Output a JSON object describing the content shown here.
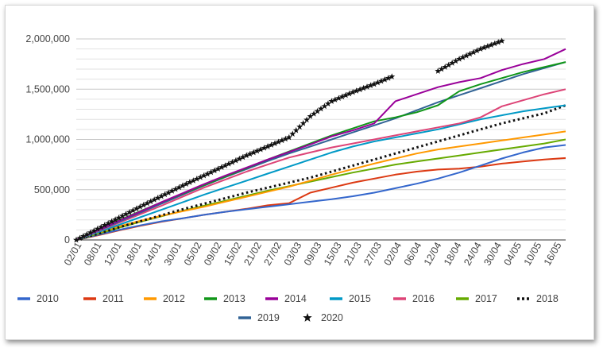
{
  "chart_data": {
    "type": "line",
    "title": "",
    "xlabel": "",
    "ylabel": "",
    "x_ticks": [
      "02/01",
      "08/01",
      "12/01",
      "18/01",
      "24/01",
      "30/01",
      "05/02",
      "09/02",
      "15/02",
      "21/02",
      "27/02",
      "03/03",
      "09/03",
      "15/03",
      "21/03",
      "27/03",
      "02/04",
      "06/04",
      "12/04",
      "18/04",
      "24/04",
      "30/04",
      "04/05",
      "10/05",
      "16/05"
    ],
    "y_ticks": [
      "0",
      "500,000",
      "1,000,000",
      "1,500,000",
      "2,000,000"
    ],
    "ylim": [
      0,
      2000000
    ],
    "grid": true,
    "legend_position": "bottom",
    "series": [
      {
        "name": "2010",
        "color": "#3366cc",
        "style": "solid",
        "values": [
          0,
          50000,
          100000,
          145000,
          185000,
          215000,
          250000,
          280000,
          305000,
          330000,
          355000,
          380000,
          405000,
          435000,
          470000,
          515000,
          560000,
          610000,
          670000,
          740000,
          810000,
          870000,
          920000,
          945000
        ]
      },
      {
        "name": "2011",
        "color": "#dc3912",
        "style": "solid",
        "values": [
          0,
          45000,
          95000,
          140000,
          180000,
          215000,
          250000,
          280000,
          310000,
          345000,
          365000,
          470000,
          520000,
          570000,
          610000,
          650000,
          680000,
          700000,
          710000,
          730000,
          760000,
          780000,
          800000,
          815000
        ]
      },
      {
        "name": "2012",
        "color": "#ff9900",
        "style": "solid",
        "values": [
          0,
          70000,
          135000,
          190000,
          240000,
          285000,
          330000,
          380000,
          430000,
          480000,
          530000,
          590000,
          650000,
          705000,
          760000,
          810000,
          860000,
          900000,
          930000,
          960000,
          990000,
          1020000,
          1050000,
          1080000
        ]
      },
      {
        "name": "2013",
        "color": "#109618",
        "style": "solid",
        "values": [
          0,
          100000,
          195000,
          285000,
          375000,
          460000,
          545000,
          630000,
          715000,
          800000,
          880000,
          960000,
          1040000,
          1110000,
          1180000,
          1220000,
          1270000,
          1340000,
          1480000,
          1550000,
          1610000,
          1670000,
          1720000,
          1770000
        ]
      },
      {
        "name": "2014",
        "color": "#990099",
        "style": "solid",
        "values": [
          0,
          95000,
          190000,
          280000,
          375000,
          465000,
          555000,
          640000,
          720000,
          800000,
          875000,
          950000,
          1030000,
          1090000,
          1160000,
          1380000,
          1450000,
          1520000,
          1570000,
          1610000,
          1690000,
          1750000,
          1800000,
          1900000
        ]
      },
      {
        "name": "2015",
        "color": "#0099c6",
        "style": "solid",
        "values": [
          0,
          75000,
          150000,
          225000,
          300000,
          375000,
          450000,
          520000,
          590000,
          660000,
          730000,
          800000,
          870000,
          930000,
          980000,
          1020000,
          1060000,
          1100000,
          1150000,
          1200000,
          1240000,
          1280000,
          1310000,
          1340000
        ]
      },
      {
        "name": "2016",
        "color": "#dd4477",
        "style": "solid",
        "values": [
          0,
          85000,
          170000,
          255000,
          340000,
          430000,
          520000,
          600000,
          680000,
          750000,
          820000,
          870000,
          920000,
          960000,
          1000000,
          1040000,
          1080000,
          1120000,
          1160000,
          1220000,
          1330000,
          1390000,
          1450000,
          1500000
        ]
      },
      {
        "name": "2017",
        "color": "#66aa00",
        "style": "solid",
        "values": [
          0,
          60000,
          120000,
          180000,
          235000,
          290000,
          340000,
          390000,
          440000,
          490000,
          535000,
          580000,
          625000,
          670000,
          710000,
          750000,
          780000,
          810000,
          840000,
          870000,
          900000,
          930000,
          960000,
          1000000
        ]
      },
      {
        "name": "2018",
        "color": "#111111",
        "style": "dotted",
        "values": [
          0,
          60000,
          125000,
          185000,
          245000,
          305000,
          360000,
          415000,
          470000,
          520000,
          570000,
          620000,
          680000,
          740000,
          800000,
          860000,
          920000,
          980000,
          1040000,
          1100000,
          1160000,
          1210000,
          1260000,
          1340000
        ]
      },
      {
        "name": "2019",
        "color": "#316395",
        "style": "solid",
        "values": [
          0,
          90000,
          180000,
          270000,
          360000,
          450000,
          540000,
          625000,
          705000,
          785000,
          860000,
          930000,
          1000000,
          1070000,
          1140000,
          1210000,
          1290000,
          1370000,
          1440000,
          1510000,
          1580000,
          1650000,
          1710000,
          1770000
        ]
      },
      {
        "name": "2020",
        "color": "#111111",
        "style": "star",
        "values": [
          0,
          110000,
          220000,
          330000,
          435000,
          540000,
          640000,
          740000,
          840000,
          930000,
          1020000,
          1230000,
          1380000,
          1470000,
          1550000,
          1640000,
          null,
          1680000,
          1800000,
          1900000,
          1980000
        ]
      }
    ]
  }
}
